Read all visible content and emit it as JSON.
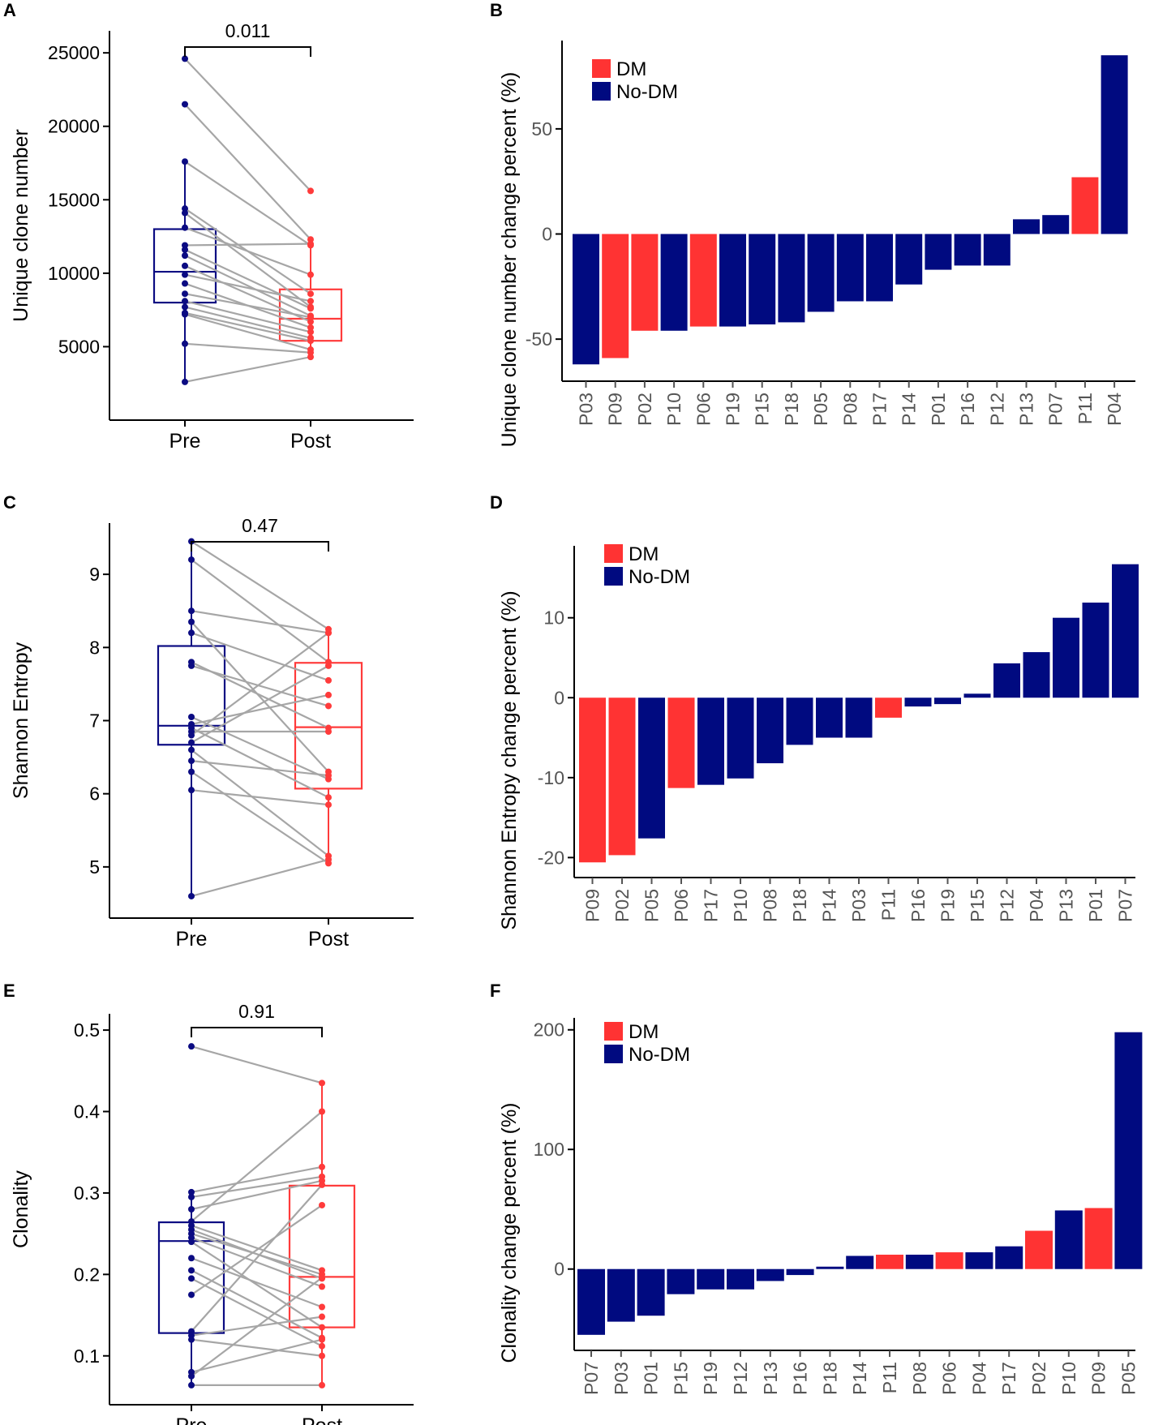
{
  "colors": {
    "pre": "#0b0b82",
    "post": "#ff3b3b",
    "dm": "#ff3333",
    "nodm": "#000a80",
    "paired_line": "#a6a6a6",
    "bar_tick": "#555555"
  },
  "chart_data": [
    {
      "id": "A",
      "type": "box-paired",
      "panel_label": "A",
      "ylabel": "Unique clone number",
      "categories": [
        "Pre",
        "Post"
      ],
      "pvalue": "0.011",
      "yticks": [
        5000,
        10000,
        15000,
        20000,
        25000
      ],
      "ylim": [
        0,
        26500
      ],
      "box": {
        "Pre": {
          "q1": 8000,
          "median": 10100,
          "q3": 13000,
          "whisker_low": 2600,
          "whisker_high": 17600
        },
        "Post": {
          "q1": 5400,
          "median": 6900,
          "q3": 8900,
          "whisker_low": 4300,
          "whisker_high": 12300
        }
      },
      "pairs": [
        [
          24600,
          15600
        ],
        [
          21500,
          12300
        ],
        [
          17600,
          11900
        ],
        [
          14400,
          8600
        ],
        [
          14100,
          7700
        ],
        [
          13100,
          9900
        ],
        [
          11900,
          12000
        ],
        [
          11600,
          7600
        ],
        [
          11200,
          7100
        ],
        [
          10500,
          6700
        ],
        [
          9900,
          8100
        ],
        [
          9300,
          6300
        ],
        [
          8600,
          7000
        ],
        [
          8100,
          6000
        ],
        [
          7700,
          5600
        ],
        [
          7300,
          5400
        ],
        [
          7200,
          4800
        ],
        [
          5200,
          4600
        ],
        [
          2600,
          4300
        ]
      ]
    },
    {
      "id": "B",
      "type": "bar",
      "panel_label": "B",
      "ylabel": "Unique clone number change percent (%)",
      "yticks": [
        -50,
        0,
        50
      ],
      "ylim": [
        -70,
        92
      ],
      "legend": [
        "DM",
        "No-DM"
      ],
      "categories": [
        "P03",
        "P09",
        "P02",
        "P10",
        "P06",
        "P19",
        "P15",
        "P18",
        "P05",
        "P08",
        "P17",
        "P14",
        "P01",
        "P16",
        "P12",
        "P13",
        "P07",
        "P11",
        "P04"
      ],
      "values": [
        -62,
        -59,
        -46,
        -46,
        -44,
        -44,
        -43,
        -42,
        -37,
        -32,
        -32,
        -24,
        -17,
        -15,
        -15,
        7,
        9,
        27,
        85
      ],
      "groups": [
        "No-DM",
        "DM",
        "DM",
        "No-DM",
        "DM",
        "No-DM",
        "No-DM",
        "No-DM",
        "No-DM",
        "No-DM",
        "No-DM",
        "No-DM",
        "No-DM",
        "No-DM",
        "No-DM",
        "No-DM",
        "No-DM",
        "DM",
        "No-DM"
      ]
    },
    {
      "id": "C",
      "type": "box-paired",
      "panel_label": "C",
      "ylabel": "Shannon Entropy",
      "categories": [
        "Pre",
        "Post"
      ],
      "pvalue": "0.47",
      "yticks": [
        5,
        6,
        7,
        8,
        9
      ],
      "ylim": [
        4.3,
        9.7
      ],
      "box": {
        "Pre": {
          "q1": 6.67,
          "median": 6.93,
          "q3": 8.02,
          "whisker_low": 4.6,
          "whisker_high": 9.45
        },
        "Post": {
          "q1": 6.07,
          "median": 6.91,
          "q3": 7.79,
          "whisker_low": 5.05,
          "whisker_high": 8.25
        }
      },
      "pairs": [
        [
          9.45,
          8.25
        ],
        [
          9.2,
          7.8
        ],
        [
          8.5,
          8.2
        ],
        [
          8.35,
          6.3
        ],
        [
          8.2,
          7.55
        ],
        [
          7.8,
          6.9
        ],
        [
          7.75,
          7.2
        ],
        [
          7.05,
          6.2
        ],
        [
          6.95,
          7.35
        ],
        [
          6.9,
          5.95
        ],
        [
          6.85,
          6.85
        ],
        [
          6.8,
          8.2
        ],
        [
          6.7,
          7.75
        ],
        [
          6.6,
          5.15
        ],
        [
          6.45,
          6.25
        ],
        [
          6.3,
          5.05
        ],
        [
          6.05,
          5.85
        ],
        [
          4.6,
          5.1
        ]
      ]
    },
    {
      "id": "D",
      "type": "bar",
      "panel_label": "D",
      "ylabel": "Shannon Entropy change percent (%)",
      "yticks": [
        -20,
        -10,
        0,
        10
      ],
      "ylim": [
        -22.5,
        19
      ],
      "legend": [
        "DM",
        "No-DM"
      ],
      "categories": [
        "P09",
        "P02",
        "P05",
        "P06",
        "P17",
        "P10",
        "P08",
        "P18",
        "P14",
        "P03",
        "P11",
        "P16",
        "P19",
        "P15",
        "P12",
        "P04",
        "P13",
        "P01",
        "P07"
      ],
      "values": [
        -20.6,
        -19.7,
        -17.6,
        -11.3,
        -10.9,
        -10.1,
        -8.2,
        -5.9,
        -5.0,
        -5.0,
        -2.5,
        -1.1,
        -0.8,
        0.5,
        4.3,
        5.7,
        10.0,
        11.9,
        16.7
      ],
      "groups": [
        "DM",
        "DM",
        "No-DM",
        "DM",
        "No-DM",
        "No-DM",
        "No-DM",
        "No-DM",
        "No-DM",
        "No-DM",
        "DM",
        "No-DM",
        "No-DM",
        "No-DM",
        "No-DM",
        "No-DM",
        "No-DM",
        "No-DM",
        "No-DM"
      ]
    },
    {
      "id": "E",
      "type": "box-paired",
      "panel_label": "E",
      "ylabel": "Clonality",
      "categories": [
        "Pre",
        "Post"
      ],
      "pvalue": "0.91",
      "yticks": [
        0.1,
        0.2,
        0.3,
        0.4,
        0.5
      ],
      "ylim": [
        0.04,
        0.52
      ],
      "box": {
        "Pre": {
          "q1": 0.128,
          "median": 0.241,
          "q3": 0.264,
          "whisker_low": 0.064,
          "whisker_high": 0.301
        },
        "Post": {
          "q1": 0.135,
          "median": 0.197,
          "q3": 0.309,
          "whisker_low": 0.064,
          "whisker_high": 0.435
        }
      },
      "pairs": [
        [
          0.48,
          0.435
        ],
        [
          0.301,
          0.332
        ],
        [
          0.295,
          0.32
        ],
        [
          0.28,
          0.315
        ],
        [
          0.265,
          0.4
        ],
        [
          0.26,
          0.205
        ],
        [
          0.255,
          0.195
        ],
        [
          0.25,
          0.2
        ],
        [
          0.245,
          0.185
        ],
        [
          0.24,
          0.135
        ],
        [
          0.22,
          0.16
        ],
        [
          0.205,
          0.122
        ],
        [
          0.195,
          0.112
        ],
        [
          0.175,
          0.285
        ],
        [
          0.13,
          0.31
        ],
        [
          0.125,
          0.148
        ],
        [
          0.12,
          0.1
        ],
        [
          0.08,
          0.12
        ],
        [
          0.075,
          0.196
        ],
        [
          0.064,
          0.064
        ]
      ]
    },
    {
      "id": "F",
      "type": "bar",
      "panel_label": "F",
      "ylabel": "Clonality change percent (%)",
      "yticks": [
        0,
        100,
        200
      ],
      "ylim": [
        -68,
        210
      ],
      "legend": [
        "DM",
        "No-DM"
      ],
      "categories": [
        "P07",
        "P03",
        "P01",
        "P15",
        "P19",
        "P12",
        "P13",
        "P16",
        "P18",
        "P14",
        "P11",
        "P08",
        "P06",
        "P04",
        "P17",
        "P02",
        "P10",
        "P09",
        "P05"
      ],
      "values": [
        -55,
        -44,
        -39,
        -21,
        -17,
        -17,
        -10,
        -5,
        2,
        11,
        12,
        12,
        14,
        14,
        19,
        32,
        49,
        51,
        198
      ],
      "groups": [
        "No-DM",
        "No-DM",
        "No-DM",
        "No-DM",
        "No-DM",
        "No-DM",
        "No-DM",
        "No-DM",
        "No-DM",
        "No-DM",
        "DM",
        "No-DM",
        "DM",
        "No-DM",
        "No-DM",
        "DM",
        "No-DM",
        "DM",
        "No-DM"
      ]
    }
  ]
}
